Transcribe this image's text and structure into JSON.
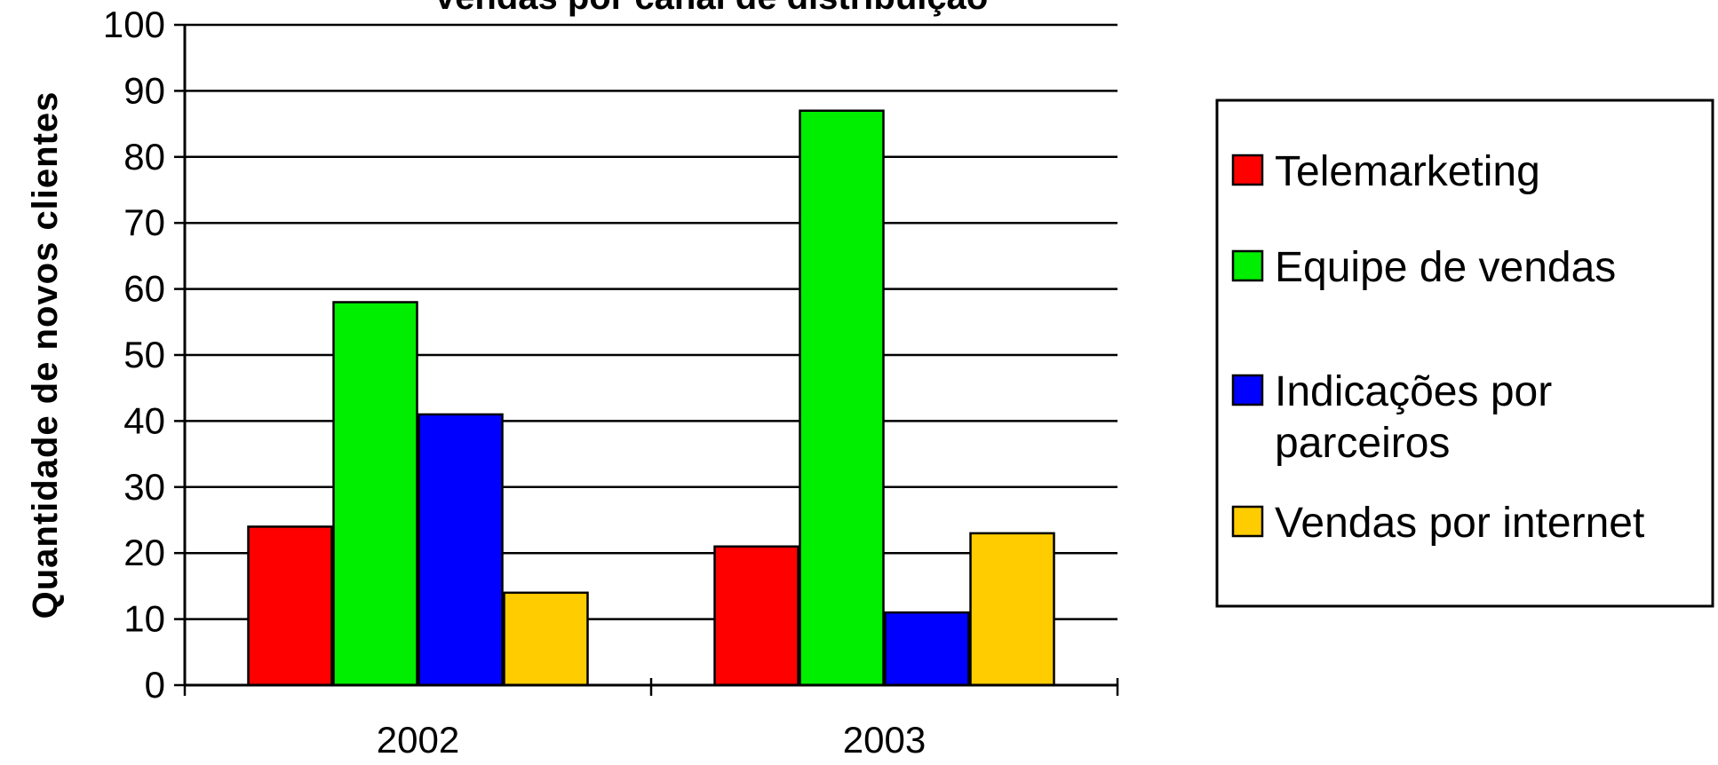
{
  "chart_data": {
    "type": "bar",
    "title": "Vendas por canal de distribuição",
    "xlabel": "",
    "ylabel": "Quantidade de novos clientes",
    "categories": [
      "2002",
      "2003"
    ],
    "ylim": [
      0,
      100
    ],
    "yticks": [
      0,
      10,
      20,
      30,
      40,
      50,
      60,
      70,
      80,
      90,
      100
    ],
    "grid": true,
    "legend_position": "right",
    "series": [
      {
        "name": "Telemarketing",
        "color": "#ff0000",
        "values": [
          24,
          21
        ]
      },
      {
        "name": "Equipe de vendas",
        "color": "#00ee00",
        "values": [
          58,
          87
        ]
      },
      {
        "name": "Indicações por parceiros",
        "legend_lines": [
          "Indicações por",
          "parceiros"
        ],
        "color": "#0000ff",
        "values": [
          41,
          11
        ]
      },
      {
        "name": "Vendas por internet",
        "color": "#ffcc00",
        "values": [
          14,
          23
        ]
      }
    ]
  }
}
